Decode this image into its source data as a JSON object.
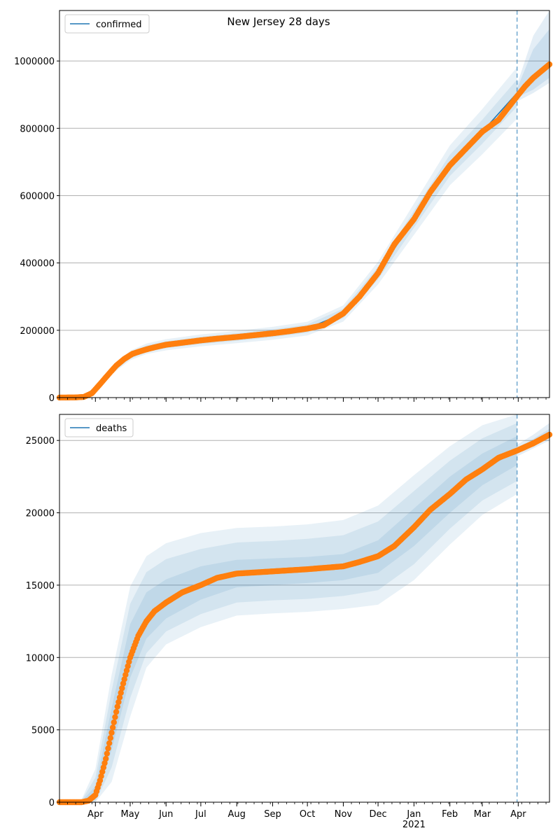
{
  "title": "New Jersey 28 days",
  "colors": {
    "model_line": "#1f77b4",
    "band_fill": "#1f77b4",
    "observed": "#ff7f0e",
    "grid": "#b0b0b0",
    "cutoff": "#1f77b4"
  },
  "chart_data": [
    {
      "type": "line",
      "legend": "confirmed",
      "legend_position": "top-left",
      "grid": "horizontal",
      "xlim": [
        "2020-03-01",
        "2021-04-28"
      ],
      "ylim": [
        0,
        1150000
      ],
      "yticks": [
        0,
        200000,
        400000,
        600000,
        800000,
        1000000
      ],
      "ytick_labels": [
        "0",
        "200000",
        "400000",
        "600000",
        "800000",
        "1000000"
      ],
      "cutoff_date": "2021-03-31",
      "observed_x": [
        "2020-03-01",
        "2020-03-15",
        "2020-03-22",
        "2020-03-29",
        "2020-04-05",
        "2020-04-12",
        "2020-04-19",
        "2020-04-26",
        "2020-05-03",
        "2020-05-10",
        "2020-05-17",
        "2020-05-24",
        "2020-06-01",
        "2020-06-15",
        "2020-07-01",
        "2020-07-15",
        "2020-08-01",
        "2020-08-15",
        "2020-09-01",
        "2020-09-15",
        "2020-10-01",
        "2020-10-15",
        "2020-11-01",
        "2020-11-15",
        "2020-12-01",
        "2020-12-15",
        "2021-01-01",
        "2021-01-15",
        "2021-02-01",
        "2021-02-15",
        "2021-03-01",
        "2021-03-15",
        "2021-03-31",
        "2021-04-07",
        "2021-04-14",
        "2021-04-21",
        "2021-04-28"
      ],
      "observed_y": [
        0,
        500,
        2000,
        13000,
        40000,
        68000,
        95000,
        115000,
        130000,
        138000,
        145000,
        151000,
        157000,
        163000,
        170000,
        175000,
        180000,
        185000,
        191000,
        197000,
        205000,
        215000,
        250000,
        300000,
        370000,
        455000,
        530000,
        610000,
        690000,
        740000,
        790000,
        825000,
        895000,
        925000,
        950000,
        970000,
        990000
      ],
      "model_x": [
        "2020-03-01",
        "2020-03-20",
        "2020-04-01",
        "2020-04-15",
        "2020-05-01",
        "2020-05-15",
        "2020-06-01",
        "2020-07-01",
        "2020-08-01",
        "2020-09-01",
        "2020-10-01",
        "2020-11-01",
        "2020-12-01",
        "2021-01-01",
        "2021-02-01",
        "2021-03-01",
        "2021-03-31"
      ],
      "model_y": [
        0,
        1500,
        25000,
        80000,
        125000,
        145000,
        157000,
        170000,
        180000,
        191000,
        205000,
        250000,
        370000,
        530000,
        690000,
        790000,
        905000
      ],
      "forecast_x": [
        "2021-03-31",
        "2021-04-14",
        "2021-04-28"
      ],
      "forecast_y": [
        905000,
        950000,
        990000
      ],
      "forecast_upper": [
        [
          918000,
          1035000,
          1095000
        ],
        [
          930000,
          1075000,
          1150000
        ]
      ],
      "forecast_lower": [
        [
          892000,
          915000,
          950000
        ],
        [
          880000,
          905000,
          935000
        ]
      ]
    },
    {
      "type": "line",
      "legend": "deaths",
      "legend_position": "top-left",
      "grid": "horizontal",
      "xlim": [
        "2020-03-01",
        "2021-04-28"
      ],
      "ylim": [
        0,
        26800
      ],
      "yticks": [
        0,
        5000,
        10000,
        15000,
        20000,
        25000
      ],
      "ytick_labels": [
        "0",
        "5000",
        "10000",
        "15000",
        "20000",
        "25000"
      ],
      "xtick_labels": [
        "Apr",
        "May",
        "Jun",
        "Jul",
        "Aug",
        "Sep",
        "Oct",
        "Nov",
        "Dec",
        "Jan",
        "Feb",
        "Mar",
        "Apr"
      ],
      "xtick_dates": [
        "2020-04-01",
        "2020-05-01",
        "2020-06-01",
        "2020-07-01",
        "2020-08-01",
        "2020-09-01",
        "2020-10-01",
        "2020-11-01",
        "2020-12-01",
        "2021-01-01",
        "2021-02-01",
        "2021-03-01",
        "2021-04-01"
      ],
      "year_label": "2021",
      "year_label_date": "2021-01-01",
      "cutoff_date": "2021-03-31",
      "observed_x": [
        "2020-03-01",
        "2020-03-20",
        "2020-03-26",
        "2020-04-01",
        "2020-04-05",
        "2020-04-10",
        "2020-04-15",
        "2020-04-20",
        "2020-04-25",
        "2020-05-01",
        "2020-05-08",
        "2020-05-15",
        "2020-05-22",
        "2020-06-01",
        "2020-06-15",
        "2020-07-01",
        "2020-07-15",
        "2020-08-01",
        "2020-09-01",
        "2020-10-01",
        "2020-11-01",
        "2020-11-15",
        "2020-12-01",
        "2020-12-15",
        "2021-01-01",
        "2021-01-15",
        "2021-02-01",
        "2021-02-15",
        "2021-03-01",
        "2021-03-15",
        "2021-03-31",
        "2021-04-14",
        "2021-04-28"
      ],
      "observed_y": [
        0,
        0,
        100,
        500,
        1500,
        3000,
        4800,
        6600,
        8200,
        10000,
        11500,
        12500,
        13200,
        13800,
        14500,
        15000,
        15500,
        15800,
        15950,
        16100,
        16300,
        16600,
        17000,
        17700,
        19000,
        20200,
        21300,
        22300,
        23000,
        23800,
        24300,
        24800,
        25400
      ],
      "model_x": [
        "2020-03-01",
        "2020-03-20",
        "2020-04-01",
        "2020-04-15",
        "2020-05-01",
        "2020-05-15",
        "2020-06-01",
        "2020-07-01",
        "2020-08-01",
        "2020-09-01",
        "2020-10-01",
        "2020-11-01",
        "2020-12-01",
        "2021-01-01",
        "2021-02-01",
        "2021-03-01",
        "2021-03-31"
      ],
      "model_y": [
        0,
        0,
        500,
        4800,
        10000,
        12500,
        13800,
        15000,
        15800,
        15950,
        16100,
        16300,
        17000,
        19000,
        21300,
        23000,
        24300
      ],
      "band_upper": [
        [
          0,
          60,
          1100,
          6500,
          12300,
          14500,
          15400,
          16300,
          16750,
          16850,
          16950,
          17150,
          18100,
          20300,
          22500,
          24100,
          25300
        ],
        [
          0,
          120,
          1700,
          7700,
          13700,
          15900,
          16800,
          17500,
          17950,
          18050,
          18200,
          18450,
          19400,
          21500,
          23600,
          25150,
          26200
        ],
        [
          0,
          180,
          2300,
          8800,
          14900,
          17000,
          17900,
          18600,
          18950,
          19050,
          19200,
          19500,
          20500,
          22600,
          24600,
          26050,
          26800
        ]
      ],
      "band_lower": [
        [
          0,
          0,
          150,
          3600,
          8600,
          11300,
          12700,
          14000,
          14850,
          15000,
          15150,
          15350,
          15850,
          17700,
          20000,
          21900,
          23300
        ],
        [
          0,
          0,
          0,
          2400,
          7200,
          10300,
          11800,
          13000,
          13800,
          13950,
          14050,
          14250,
          14650,
          16450,
          18900,
          20850,
          22200
        ],
        [
          0,
          0,
          0,
          1400,
          5900,
          9300,
          10900,
          12100,
          12900,
          13050,
          13150,
          13350,
          13650,
          15350,
          17800,
          19850,
          21300
        ]
      ],
      "forecast_x": [
        "2021-03-31",
        "2021-04-14",
        "2021-04-28"
      ],
      "forecast_y": [
        24300,
        24800,
        25400
      ],
      "forecast_upper": [
        [
          24500,
          25100,
          25800
        ],
        [
          24700,
          25400,
          26200
        ]
      ],
      "forecast_lower": [
        [
          24100,
          24600,
          25150
        ],
        [
          23900,
          24450,
          25000
        ]
      ]
    }
  ]
}
